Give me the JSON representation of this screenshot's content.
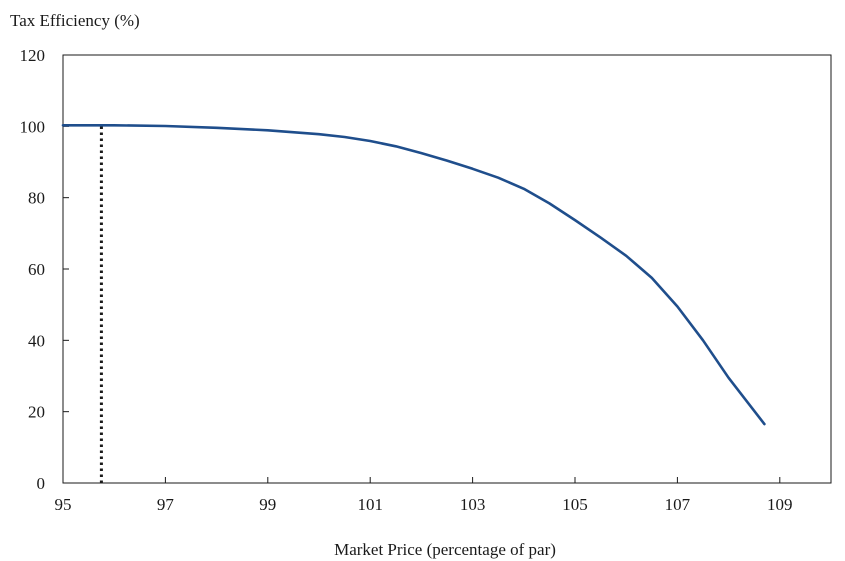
{
  "chart_data": {
    "type": "line",
    "title": "",
    "ylabel": "Tax Efficiency (%)",
    "xlabel": "Market Price (percentage of par)",
    "xlim": [
      95,
      110
    ],
    "ylim": [
      0,
      120
    ],
    "x_ticks": [
      95,
      97,
      99,
      101,
      103,
      105,
      107,
      109
    ],
    "y_ticks": [
      0,
      20,
      40,
      60,
      80,
      100,
      120
    ],
    "grid": false,
    "series": [
      {
        "color": "#1f4e8c",
        "points": [
          [
            95.0,
            100.3
          ],
          [
            96.0,
            100.3
          ],
          [
            97.0,
            100.1
          ],
          [
            98.0,
            99.6
          ],
          [
            99.0,
            98.9
          ],
          [
            100.0,
            97.8
          ],
          [
            100.5,
            97.0
          ],
          [
            101.0,
            95.9
          ],
          [
            101.5,
            94.4
          ],
          [
            102.0,
            92.5
          ],
          [
            102.5,
            90.4
          ],
          [
            103.0,
            88.1
          ],
          [
            103.5,
            85.6
          ],
          [
            104.0,
            82.5
          ],
          [
            104.5,
            78.4
          ],
          [
            105.0,
            73.7
          ],
          [
            105.5,
            68.8
          ],
          [
            106.0,
            63.7
          ],
          [
            106.5,
            57.5
          ],
          [
            107.0,
            49.5
          ],
          [
            107.5,
            40.0
          ],
          [
            108.0,
            29.5
          ],
          [
            108.7,
            16.5
          ]
        ]
      }
    ],
    "reference_line": {
      "x": 95.75,
      "y_from": 0,
      "y_to": 100.3,
      "style": "dotted",
      "color": "#1a1a1a"
    }
  }
}
